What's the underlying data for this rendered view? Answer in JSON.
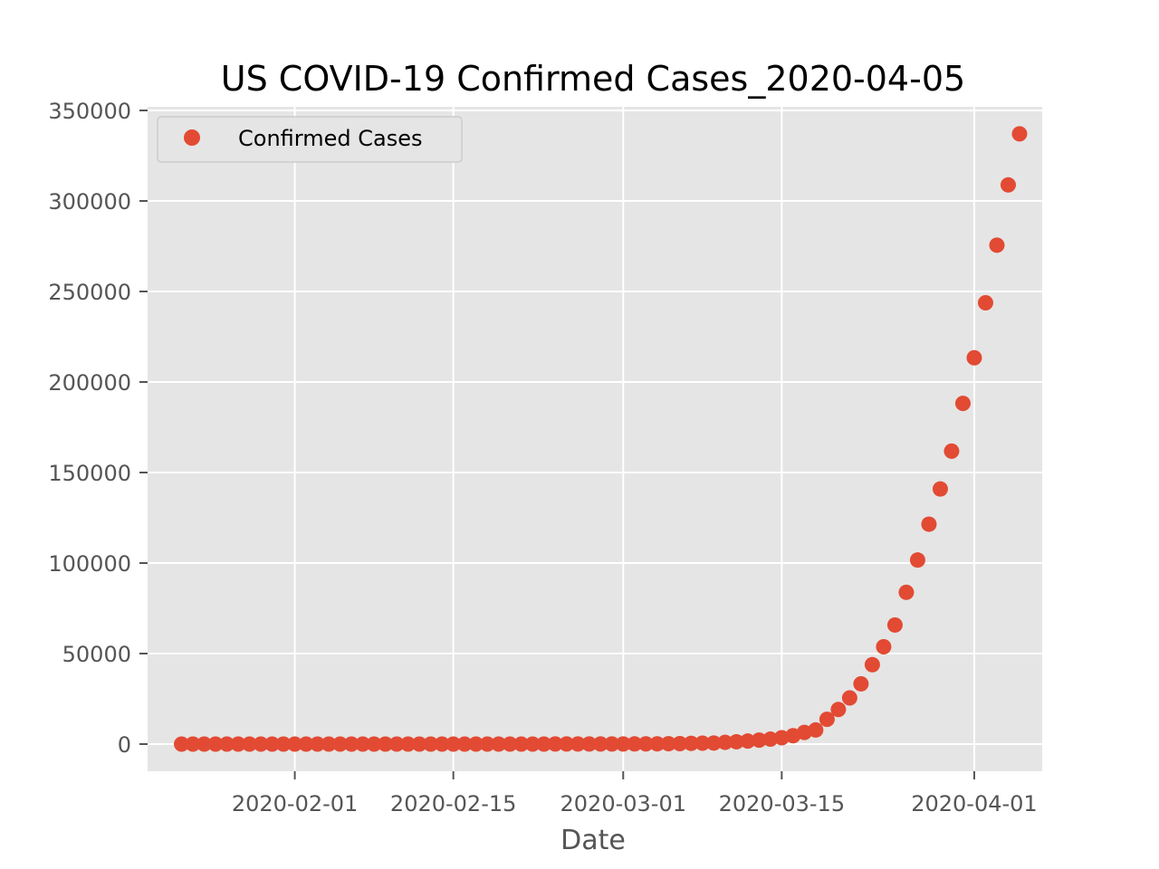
{
  "chart_data": {
    "type": "scatter",
    "title": "US COVID-19 Confirmed Cases_2020-04-05",
    "xlabel": "Date",
    "ylabel": "",
    "x_type": "date",
    "xlim": [
      "2020-01-19",
      "2020-04-07"
    ],
    "ylim": [
      -15000,
      352000
    ],
    "xticks": [
      "2020-02-01",
      "2020-02-15",
      "2020-03-01",
      "2020-03-15",
      "2020-04-01"
    ],
    "yticks": [
      0,
      50000,
      100000,
      150000,
      200000,
      250000,
      300000,
      350000
    ],
    "grid": true,
    "legend_position": "top-left",
    "background_color": "#e5e5e5",
    "marker_color": "#e24a33",
    "series": [
      {
        "name": "Confirmed Cases",
        "x": [
          "2020-01-22",
          "2020-01-23",
          "2020-01-24",
          "2020-01-25",
          "2020-01-26",
          "2020-01-27",
          "2020-01-28",
          "2020-01-29",
          "2020-01-30",
          "2020-01-31",
          "2020-02-01",
          "2020-02-02",
          "2020-02-03",
          "2020-02-04",
          "2020-02-05",
          "2020-02-06",
          "2020-02-07",
          "2020-02-08",
          "2020-02-09",
          "2020-02-10",
          "2020-02-11",
          "2020-02-12",
          "2020-02-13",
          "2020-02-14",
          "2020-02-15",
          "2020-02-16",
          "2020-02-17",
          "2020-02-18",
          "2020-02-19",
          "2020-02-20",
          "2020-02-21",
          "2020-02-22",
          "2020-02-23",
          "2020-02-24",
          "2020-02-25",
          "2020-02-26",
          "2020-02-27",
          "2020-02-28",
          "2020-02-29",
          "2020-03-01",
          "2020-03-02",
          "2020-03-03",
          "2020-03-04",
          "2020-03-05",
          "2020-03-06",
          "2020-03-07",
          "2020-03-08",
          "2020-03-09",
          "2020-03-10",
          "2020-03-11",
          "2020-03-12",
          "2020-03-13",
          "2020-03-14",
          "2020-03-15",
          "2020-03-16",
          "2020-03-17",
          "2020-03-18",
          "2020-03-19",
          "2020-03-20",
          "2020-03-21",
          "2020-03-22",
          "2020-03-23",
          "2020-03-24",
          "2020-03-25",
          "2020-03-26",
          "2020-03-27",
          "2020-03-28",
          "2020-03-29",
          "2020-03-30",
          "2020-03-31",
          "2020-04-01",
          "2020-04-02",
          "2020-04-03",
          "2020-04-04",
          "2020-04-05"
        ],
        "values": [
          1,
          1,
          2,
          2,
          5,
          5,
          5,
          5,
          5,
          7,
          8,
          8,
          11,
          11,
          11,
          11,
          11,
          11,
          11,
          11,
          12,
          12,
          13,
          13,
          13,
          13,
          13,
          13,
          13,
          13,
          15,
          15,
          15,
          51,
          51,
          57,
          58,
          60,
          68,
          74,
          98,
          118,
          149,
          217,
          262,
          402,
          518,
          583,
          959,
          1281,
          1663,
          2179,
          2727,
          3499,
          4632,
          6421,
          7786,
          13680,
          19101,
          25493,
          33276,
          43847,
          53740,
          65778,
          83836,
          101657,
          121465,
          140909,
          161831,
          188172,
          213372,
          243762,
          275586,
          308853,
          337072
        ]
      }
    ]
  }
}
